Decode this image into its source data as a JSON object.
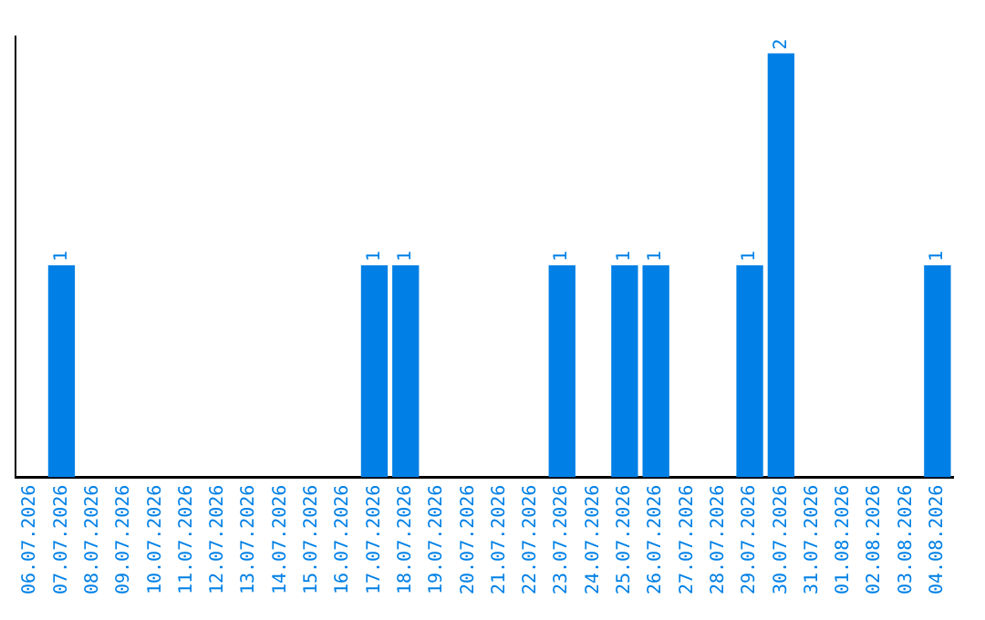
{
  "chart_data": {
    "type": "bar",
    "categories": [
      "06.07.2026",
      "07.07.2026",
      "08.07.2026",
      "09.07.2026",
      "10.07.2026",
      "11.07.2026",
      "12.07.2026",
      "13.07.2026",
      "14.07.2026",
      "15.07.2026",
      "16.07.2026",
      "17.07.2026",
      "18.07.2026",
      "19.07.2026",
      "20.07.2026",
      "21.07.2026",
      "22.07.2026",
      "23.07.2026",
      "24.07.2026",
      "25.07.2026",
      "26.07.2026",
      "27.07.2026",
      "28.07.2026",
      "29.07.2026",
      "30.07.2026",
      "31.07.2026",
      "01.08.2026",
      "02.08.2026",
      "03.08.2026",
      "04.08.2026"
    ],
    "values": [
      0,
      1,
      0,
      0,
      0,
      0,
      0,
      0,
      0,
      0,
      0,
      1,
      1,
      0,
      0,
      0,
      0,
      1,
      0,
      1,
      1,
      0,
      0,
      1,
      2,
      0,
      0,
      0,
      0,
      1
    ],
    "value_labels": [
      null,
      "1",
      null,
      null,
      null,
      null,
      null,
      null,
      null,
      null,
      null,
      "1",
      "1",
      null,
      null,
      null,
      null,
      "1",
      null,
      "1",
      "1",
      null,
      null,
      "1",
      "2",
      null,
      null,
      null,
      null,
      "1"
    ],
    "color": "#0080e6",
    "ylim": [
      0,
      2.08
    ],
    "tick_labels": "x",
    "grid": false,
    "legend": false
  }
}
